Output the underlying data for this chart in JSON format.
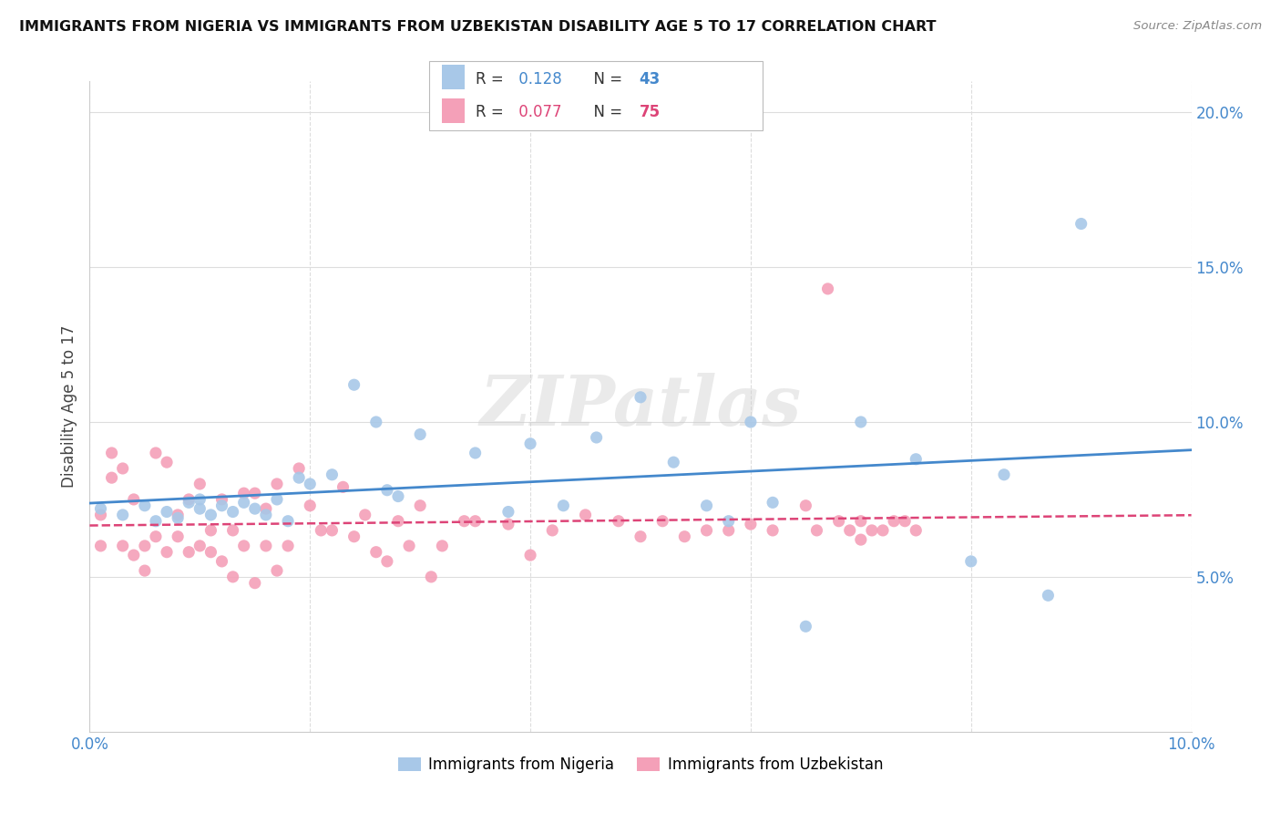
{
  "title": "IMMIGRANTS FROM NIGERIA VS IMMIGRANTS FROM UZBEKISTAN DISABILITY AGE 5 TO 17 CORRELATION CHART",
  "source": "Source: ZipAtlas.com",
  "ylabel": "Disability Age 5 to 17",
  "xlim": [
    0.0,
    0.1
  ],
  "ylim": [
    0.0,
    0.21
  ],
  "xtick_positions": [
    0.0,
    0.02,
    0.04,
    0.06,
    0.08,
    0.1
  ],
  "ytick_positions": [
    0.0,
    0.05,
    0.1,
    0.15,
    0.2
  ],
  "xtick_labels": [
    "0.0%",
    "",
    "",
    "",
    "",
    "10.0%"
  ],
  "ytick_labels": [
    "",
    "5.0%",
    "10.0%",
    "15.0%",
    "20.0%"
  ],
  "nigeria_color": "#a8c8e8",
  "uzbekistan_color": "#f4a0b8",
  "nigeria_line_color": "#4488cc",
  "uzbekistan_line_color": "#dd4477",
  "tick_label_color": "#4488cc",
  "nigeria_R": 0.128,
  "nigeria_N": 43,
  "uzbekistan_R": 0.077,
  "uzbekistan_N": 75,
  "nigeria_x": [
    0.001,
    0.003,
    0.005,
    0.006,
    0.007,
    0.008,
    0.009,
    0.01,
    0.01,
    0.011,
    0.012,
    0.013,
    0.014,
    0.015,
    0.016,
    0.017,
    0.018,
    0.019,
    0.02,
    0.022,
    0.024,
    0.026,
    0.027,
    0.028,
    0.03,
    0.035,
    0.038,
    0.04,
    0.043,
    0.046,
    0.05,
    0.053,
    0.056,
    0.058,
    0.06,
    0.062,
    0.065,
    0.07,
    0.075,
    0.08,
    0.083,
    0.087,
    0.09
  ],
  "nigeria_y": [
    0.072,
    0.07,
    0.073,
    0.068,
    0.071,
    0.069,
    0.074,
    0.072,
    0.075,
    0.07,
    0.073,
    0.071,
    0.074,
    0.072,
    0.07,
    0.075,
    0.068,
    0.082,
    0.08,
    0.083,
    0.112,
    0.1,
    0.078,
    0.076,
    0.096,
    0.09,
    0.071,
    0.093,
    0.073,
    0.095,
    0.108,
    0.087,
    0.073,
    0.068,
    0.1,
    0.074,
    0.034,
    0.1,
    0.088,
    0.055,
    0.083,
    0.044,
    0.164
  ],
  "uzbekistan_x": [
    0.001,
    0.001,
    0.002,
    0.002,
    0.003,
    0.003,
    0.004,
    0.004,
    0.005,
    0.005,
    0.006,
    0.006,
    0.007,
    0.007,
    0.008,
    0.008,
    0.009,
    0.009,
    0.01,
    0.01,
    0.011,
    0.011,
    0.012,
    0.012,
    0.013,
    0.013,
    0.014,
    0.014,
    0.015,
    0.015,
    0.016,
    0.016,
    0.017,
    0.017,
    0.018,
    0.019,
    0.02,
    0.021,
    0.022,
    0.023,
    0.024,
    0.025,
    0.026,
    0.027,
    0.028,
    0.029,
    0.03,
    0.031,
    0.032,
    0.034,
    0.035,
    0.038,
    0.04,
    0.042,
    0.045,
    0.048,
    0.05,
    0.052,
    0.054,
    0.056,
    0.058,
    0.06,
    0.062,
    0.065,
    0.066,
    0.067,
    0.068,
    0.069,
    0.07,
    0.07,
    0.071,
    0.072,
    0.073,
    0.074,
    0.075
  ],
  "uzbekistan_y": [
    0.07,
    0.06,
    0.09,
    0.082,
    0.085,
    0.06,
    0.075,
    0.057,
    0.06,
    0.052,
    0.09,
    0.063,
    0.087,
    0.058,
    0.07,
    0.063,
    0.075,
    0.058,
    0.08,
    0.06,
    0.065,
    0.058,
    0.075,
    0.055,
    0.065,
    0.05,
    0.077,
    0.06,
    0.077,
    0.048,
    0.072,
    0.06,
    0.08,
    0.052,
    0.06,
    0.085,
    0.073,
    0.065,
    0.065,
    0.079,
    0.063,
    0.07,
    0.058,
    0.055,
    0.068,
    0.06,
    0.073,
    0.05,
    0.06,
    0.068,
    0.068,
    0.067,
    0.057,
    0.065,
    0.07,
    0.068,
    0.063,
    0.068,
    0.063,
    0.065,
    0.065,
    0.067,
    0.065,
    0.073,
    0.065,
    0.143,
    0.068,
    0.065,
    0.068,
    0.062,
    0.065,
    0.065,
    0.068,
    0.068,
    0.065
  ],
  "watermark": "ZIPatlas",
  "background_color": "#ffffff",
  "grid_color": "#dddddd",
  "legend_nigeria_label": "Immigrants from Nigeria",
  "legend_uzbekistan_label": "Immigrants from Uzbekistan"
}
